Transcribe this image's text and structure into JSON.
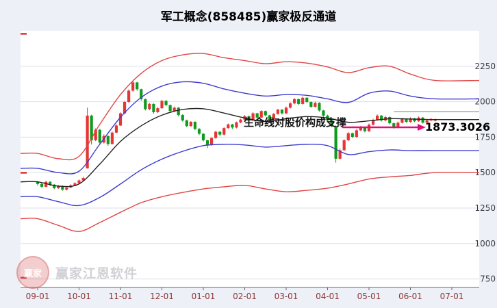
{
  "page": {
    "background": "#eef0f8"
  },
  "title": "军工概念(858485)赢家极反通道",
  "annotation": {
    "support_text": "生命线对股价构成支撑",
    "price_label": "1873.3026",
    "arrow_color": "#e0107a"
  },
  "watermark": {
    "logo_text": "赢家",
    "brand": "赢家江恩软件"
  },
  "chart_data": {
    "type": "candlestick",
    "title": "军工概念(858485)赢家极反通道",
    "x_tick_labels": [
      "09-01",
      "10-01",
      "11-01",
      "12-01",
      "01-01",
      "02-01",
      "03-01",
      "04-01",
      "05-01",
      "06-01",
      "07-01"
    ],
    "x_tick_slots": [
      0,
      10,
      20,
      30,
      40,
      50,
      60,
      70,
      80,
      90,
      100
    ],
    "y_ticks": [
      2250,
      2000,
      1750,
      1500,
      1250,
      1000,
      750
    ],
    "ylim": [
      690,
      2500
    ],
    "grid": "horizontal",
    "y_axis_side": "right",
    "axis_label_color": "#8a3535",
    "grid_color": "#dcdde8",
    "up_color": "#e53535",
    "down_color": "#0e9b1e",
    "last_price": 1873.3026,
    "left_tick_values": [
      2480,
      1500,
      760
    ],
    "left_tick_color": "#e03030",
    "candles": [
      [
        1435,
        1442,
        1408,
        1420
      ],
      [
        1420,
        1428,
        1392,
        1400
      ],
      [
        1400,
        1442,
        1396,
        1435
      ],
      [
        1435,
        1440,
        1405,
        1415
      ],
      [
        1415,
        1420,
        1382,
        1390
      ],
      [
        1390,
        1412,
        1384,
        1405
      ],
      [
        1405,
        1410,
        1372,
        1380
      ],
      [
        1380,
        1402,
        1374,
        1395
      ],
      [
        1395,
        1418,
        1390,
        1410
      ],
      [
        1410,
        1432,
        1404,
        1425
      ],
      [
        1425,
        1452,
        1420,
        1445
      ],
      [
        1445,
        1470,
        1438,
        1462
      ],
      [
        1530,
        1958,
        1528,
        1902
      ],
      [
        1902,
        1908,
        1698,
        1728
      ],
      [
        1728,
        1812,
        1722,
        1802
      ],
      [
        1802,
        1808,
        1696,
        1712
      ],
      [
        1712,
        1770,
        1705,
        1758
      ],
      [
        1758,
        1762,
        1690,
        1702
      ],
      [
        1702,
        1790,
        1698,
        1782
      ],
      [
        1782,
        1840,
        1776,
        1832
      ],
      [
        1832,
        1925,
        1828,
        1918
      ],
      [
        1918,
        2006,
        1912,
        1998
      ],
      [
        1998,
        2088,
        1992,
        2078
      ],
      [
        2078,
        2148,
        2070,
        2136
      ],
      [
        2136,
        2140,
        2078,
        2088
      ],
      [
        2088,
        2092,
        2008,
        2018
      ],
      [
        2018,
        2022,
        1938,
        1948
      ],
      [
        1948,
        1992,
        1940,
        1984
      ],
      [
        1984,
        1988,
        1916,
        1926
      ],
      [
        1926,
        1962,
        1920,
        1954
      ],
      [
        1954,
        2014,
        1948,
        2006
      ],
      [
        2006,
        2012,
        1968,
        1976
      ],
      [
        1976,
        1980,
        1926,
        1934
      ],
      [
        1934,
        1966,
        1928,
        1958
      ],
      [
        1958,
        1962,
        1896,
        1906
      ],
      [
        1906,
        1912,
        1860,
        1868
      ],
      [
        1868,
        1874,
        1820,
        1828
      ],
      [
        1828,
        1864,
        1822,
        1858
      ],
      [
        1858,
        1862,
        1800,
        1808
      ],
      [
        1808,
        1814,
        1764,
        1774
      ],
      [
        1774,
        1778,
        1720,
        1728
      ],
      [
        1728,
        1732,
        1672,
        1694
      ],
      [
        1694,
        1750,
        1690,
        1744
      ],
      [
        1744,
        1796,
        1738,
        1788
      ],
      [
        1788,
        1792,
        1756,
        1768
      ],
      [
        1768,
        1820,
        1762,
        1814
      ],
      [
        1814,
        1846,
        1808,
        1840
      ],
      [
        1840,
        1844,
        1806,
        1818
      ],
      [
        1818,
        1860,
        1812,
        1854
      ],
      [
        1854,
        1880,
        1848,
        1874
      ],
      [
        1874,
        1906,
        1868,
        1898
      ],
      [
        1898,
        1902,
        1858,
        1868
      ],
      [
        1868,
        1926,
        1862,
        1918
      ],
      [
        1918,
        1922,
        1880,
        1888
      ],
      [
        1888,
        1940,
        1884,
        1934
      ],
      [
        1934,
        1938,
        1896,
        1904
      ],
      [
        1904,
        1908,
        1864,
        1874
      ],
      [
        1874,
        1920,
        1868,
        1914
      ],
      [
        1914,
        1950,
        1908,
        1944
      ],
      [
        1944,
        1948,
        1910,
        1918
      ],
      [
        1918,
        1966,
        1912,
        1958
      ],
      [
        1958,
        1996,
        1952,
        1988
      ],
      [
        1988,
        2026,
        1982,
        2018
      ],
      [
        2018,
        2022,
        1976,
        1984
      ],
      [
        1984,
        2036,
        1980,
        2028
      ],
      [
        2028,
        2032,
        1990,
        1998
      ],
      [
        1998,
        2002,
        1956,
        1964
      ],
      [
        1964,
        2000,
        1958,
        1992
      ],
      [
        1992,
        1996,
        1930,
        1938
      ],
      [
        1938,
        1942,
        1894,
        1902
      ],
      [
        1902,
        1908,
        1860,
        1868
      ],
      [
        1868,
        1872,
        1820,
        1828
      ],
      [
        1828,
        1832,
        1570,
        1598
      ],
      [
        1598,
        1670,
        1592,
        1658
      ],
      [
        1658,
        1736,
        1652,
        1728
      ],
      [
        1728,
        1786,
        1722,
        1778
      ],
      [
        1778,
        1782,
        1744,
        1752
      ],
      [
        1752,
        1806,
        1746,
        1798
      ],
      [
        1798,
        1830,
        1792,
        1822
      ],
      [
        1822,
        1826,
        1784,
        1792
      ],
      [
        1792,
        1846,
        1786,
        1838
      ],
      [
        1838,
        1880,
        1832,
        1872
      ],
      [
        1872,
        1910,
        1866,
        1902
      ],
      [
        1902,
        1906,
        1860,
        1868
      ],
      [
        1868,
        1900,
        1862,
        1892
      ],
      [
        1892,
        1896,
        1840,
        1848
      ],
      [
        1848,
        1852,
        1810,
        1818
      ],
      [
        1818,
        1860,
        1812,
        1852
      ],
      [
        1852,
        1886,
        1846,
        1878
      ],
      [
        1878,
        1882,
        1850,
        1858
      ],
      [
        1858,
        1890,
        1852,
        1882
      ],
      [
        1882,
        1886,
        1856,
        1862
      ],
      [
        1862,
        1896,
        1858,
        1888
      ],
      [
        1888,
        1892,
        1846,
        1852
      ],
      [
        1852,
        1876,
        1848,
        1868
      ],
      [
        1868,
        1886,
        1862,
        1878
      ],
      [
        1866,
        1882,
        1860,
        1873.3
      ]
    ],
    "channel_lines": [
      {
        "name": "outer-upper-red-line",
        "color": "#e04545",
        "slots": [
          0,
          5,
          10,
          15,
          20,
          25,
          30,
          35,
          40,
          45,
          50,
          55,
          60,
          65,
          70,
          75,
          80,
          85,
          90,
          96
        ],
        "values": [
          1635,
          1598,
          1615,
          1840,
          2050,
          2200,
          2290,
          2330,
          2340,
          2310,
          2290,
          2268,
          2282,
          2272,
          2245,
          2205,
          2240,
          2250,
          2195,
          2150
        ]
      },
      {
        "name": "inner-upper-blue-line",
        "color": "#3b3bd0",
        "slots": [
          0,
          5,
          10,
          15,
          20,
          25,
          30,
          35,
          40,
          45,
          50,
          55,
          60,
          65,
          70,
          75,
          80,
          85,
          90,
          96
        ],
        "values": [
          1530,
          1500,
          1510,
          1700,
          1890,
          2030,
          2110,
          2140,
          2130,
          2090,
          2060,
          2040,
          2050,
          2045,
          2020,
          1995,
          2060,
          2075,
          2040,
          2020
        ]
      },
      {
        "name": "lifeline-black-line",
        "color": "#222222",
        "slots": [
          0,
          5,
          10,
          15,
          20,
          25,
          30,
          35,
          40,
          45,
          50,
          55,
          60,
          65,
          70,
          75,
          80,
          85,
          90,
          96
        ],
        "values": [
          1435,
          1405,
          1420,
          1560,
          1720,
          1830,
          1905,
          1945,
          1950,
          1920,
          1885,
          1860,
          1880,
          1895,
          1885,
          1855,
          1865,
          1880,
          1878,
          1874
        ]
      },
      {
        "name": "inner-lower-blue-line",
        "color": "#3b3bd0",
        "slots": [
          0,
          5,
          10,
          15,
          20,
          25,
          30,
          35,
          40,
          45,
          50,
          55,
          60,
          65,
          70,
          75,
          80,
          85,
          90,
          96
        ],
        "values": [
          1330,
          1295,
          1268,
          1325,
          1420,
          1520,
          1595,
          1650,
          1690,
          1700,
          1695,
          1680,
          1690,
          1700,
          1690,
          1628,
          1648,
          1660,
          1655,
          1655
        ]
      },
      {
        "name": "outer-lower-red-line",
        "color": "#e04545",
        "slots": [
          0,
          5,
          10,
          15,
          20,
          25,
          30,
          35,
          40,
          45,
          50,
          55,
          60,
          65,
          70,
          75,
          80,
          85,
          90,
          96
        ],
        "values": [
          1175,
          1128,
          1085,
          1148,
          1220,
          1288,
          1330,
          1360,
          1385,
          1400,
          1410,
          1385,
          1365,
          1375,
          1390,
          1420,
          1455,
          1470,
          1480,
          1500
        ]
      }
    ],
    "reference_line": {
      "value": 1930,
      "from_slot": 86,
      "color": "#7aa884"
    }
  }
}
